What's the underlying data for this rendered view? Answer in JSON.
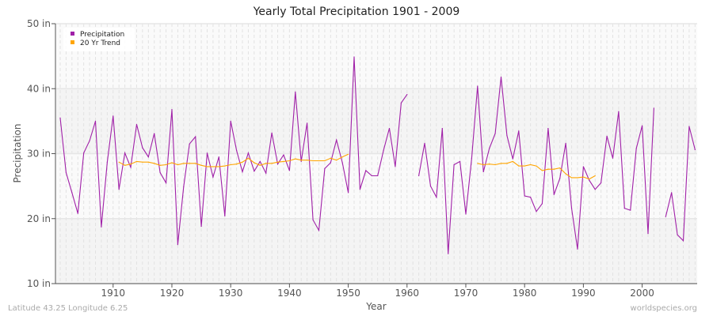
{
  "chart_data": {
    "type": "line",
    "title": "Yearly Total Precipitation 1901 - 2009",
    "xlabel": "Year",
    "ylabel": "Precipitation",
    "ylim": [
      10,
      50
    ],
    "xlim": [
      1901,
      2009
    ],
    "yticks": [
      "10 in",
      "20 in",
      "30 in",
      "40 in",
      "50 in"
    ],
    "xticks": [
      "1910",
      "1920",
      "1930",
      "1940",
      "1950",
      "1960",
      "1970",
      "1980",
      "1990",
      "2000"
    ],
    "grid": true,
    "legend": "top-left",
    "series": [
      {
        "name": "Precipitation",
        "color": "#a020a8",
        "years_start": 1901,
        "values": [
          35.5,
          27.1,
          24.0,
          20.8,
          30.1,
          32.0,
          35.0,
          18.7,
          28.7,
          35.8,
          24.5,
          30.1,
          27.9,
          34.5,
          30.9,
          29.5,
          33.1,
          27.1,
          25.5,
          36.8,
          16.0,
          24.9,
          31.5,
          32.6,
          18.8,
          30.1,
          26.4,
          29.5,
          20.4,
          35.0,
          30.5,
          27.2,
          30.1,
          27.3,
          28.8,
          27.0,
          33.2,
          28.4,
          29.8,
          27.4,
          39.5,
          28.8,
          34.7,
          19.8,
          18.2,
          27.7,
          28.6,
          32.1,
          28.6,
          24.0,
          44.9,
          24.5,
          27.4,
          26.6,
          26.6,
          30.5,
          33.9,
          28.0,
          37.8,
          39.1,
          null,
          26.6,
          31.6,
          25.0,
          23.3,
          33.9,
          14.6,
          28.3,
          28.8,
          20.7,
          29.3,
          40.4,
          27.2,
          30.8,
          33.1,
          41.8,
          32.8,
          29.2,
          33.5,
          23.5,
          23.3,
          21.1,
          22.3,
          33.9,
          23.7,
          26.2,
          31.6,
          21.6,
          15.3,
          28.0,
          25.9,
          24.5,
          25.5,
          32.7,
          29.3,
          36.5,
          21.6,
          21.3,
          30.8,
          34.3,
          17.7,
          37.0,
          null,
          20.3,
          24.0,
          17.5,
          16.6,
          34.2,
          30.6
        ]
      },
      {
        "name": "20 Yr Trend",
        "color": "#ffa500",
        "years_start": 1901,
        "values": [
          null,
          null,
          null,
          null,
          null,
          null,
          null,
          null,
          null,
          null,
          28.7,
          28.2,
          28.4,
          28.8,
          28.7,
          28.7,
          28.5,
          28.2,
          28.3,
          28.6,
          28.3,
          28.5,
          28.5,
          28.5,
          28.2,
          28.0,
          28.0,
          28.0,
          28.1,
          28.3,
          28.4,
          28.7,
          29.3,
          28.6,
          28.2,
          28.5,
          28.5,
          28.7,
          28.8,
          28.9,
          29.2,
          29.0,
          29.0,
          28.9,
          28.9,
          28.9,
          29.3,
          29.0,
          29.5,
          29.9,
          null,
          null,
          null,
          null,
          null,
          null,
          null,
          null,
          null,
          null,
          null,
          null,
          null,
          null,
          null,
          null,
          null,
          null,
          null,
          null,
          null,
          28.5,
          28.3,
          28.4,
          28.3,
          28.5,
          28.5,
          28.8,
          28.1,
          28.1,
          28.3,
          28.1,
          27.4,
          27.6,
          27.6,
          27.8,
          26.9,
          26.3,
          26.3,
          26.4,
          26.1,
          26.6,
          null,
          null,
          null,
          null,
          null,
          null,
          null,
          null,
          null,
          null,
          null,
          null,
          null,
          null,
          null,
          null,
          null
        ]
      }
    ]
  },
  "footer": {
    "location": "Latitude 43.25 Longitude 6.25",
    "source": "worldspecies.org"
  }
}
